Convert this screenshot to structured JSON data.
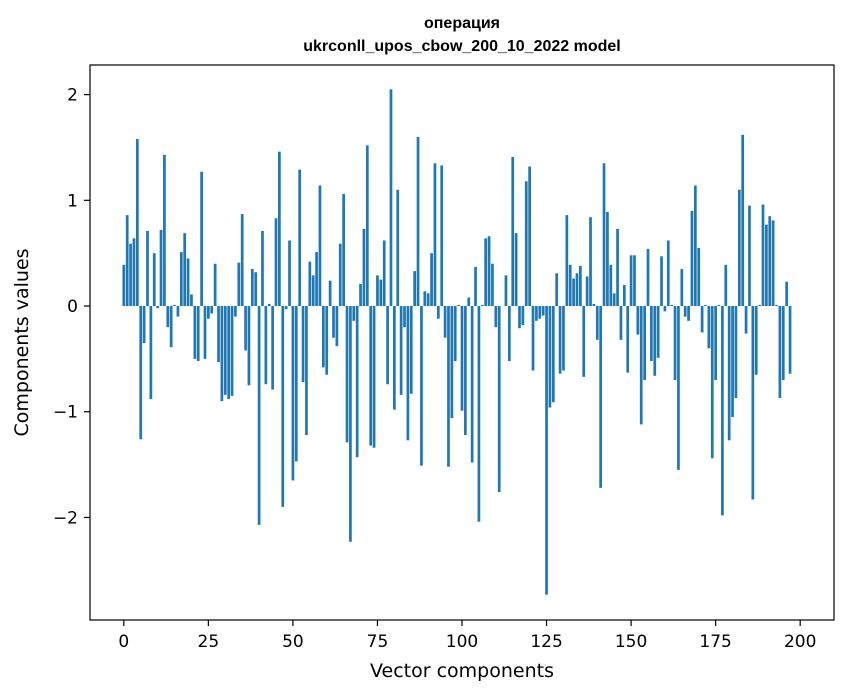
{
  "chart_data": {
    "type": "bar",
    "title_line1": "операция",
    "title_line2": "ukrconll_upos_cbow_200_10_2022 model",
    "xlabel": "Vector components",
    "ylabel": "Components values",
    "xlim": [
      -10,
      210
    ],
    "ylim": [
      -2.97,
      2.28
    ],
    "xticks": [
      0,
      25,
      50,
      75,
      100,
      125,
      150,
      175,
      200
    ],
    "yticks": [
      -2,
      -1,
      0,
      1,
      2
    ],
    "ytick_labels": [
      "−2",
      "−1",
      "0",
      "1",
      "2"
    ],
    "bar_color": "#1f77b4",
    "values": [
      0.39,
      0.86,
      0.59,
      0.64,
      1.58,
      -1.26,
      -0.35,
      0.71,
      -0.88,
      0.5,
      -0.02,
      0.72,
      1.43,
      -0.2,
      -0.39,
      0.01,
      -0.1,
      0.51,
      0.69,
      0.45,
      0.11,
      -0.5,
      -0.52,
      1.27,
      -0.5,
      -0.12,
      -0.07,
      0.4,
      -0.53,
      -0.9,
      -0.84,
      -0.88,
      -0.85,
      -0.1,
      0.41,
      0.87,
      -0.42,
      -0.75,
      0.35,
      0.32,
      -2.07,
      0.71,
      -0.74,
      0.02,
      -0.79,
      0.83,
      1.46,
      -1.9,
      -0.03,
      0.62,
      -1.65,
      -1.47,
      1.29,
      -0.72,
      -1.22,
      0.42,
      0.29,
      0.51,
      1.14,
      -0.58,
      -0.65,
      0.24,
      -0.3,
      -0.38,
      0.59,
      1.06,
      -1.29,
      -2.23,
      -0.14,
      -1.43,
      0.21,
      0.73,
      1.52,
      -1.32,
      -1.34,
      0.29,
      0.25,
      0.62,
      -0.74,
      2.05,
      -0.98,
      1.1,
      -0.84,
      -0.2,
      -1.27,
      -0.83,
      0.33,
      1.6,
      -1.51,
      0.14,
      0.12,
      0.5,
      1.35,
      -0.12,
      1.33,
      -0.3,
      -1.52,
      -1.06,
      -0.52,
      0.01,
      -0.99,
      -1.22,
      0.08,
      -1.48,
      0.37,
      -2.04,
      0.01,
      0.64,
      0.66,
      0.4,
      -0.2,
      -1.76,
      0.0,
      0.29,
      -0.52,
      1.41,
      0.69,
      -0.21,
      -0.18,
      1.18,
      1.32,
      -0.61,
      -0.14,
      -0.12,
      -0.09,
      -2.73,
      -0.96,
      -0.91,
      0.31,
      -0.64,
      -0.61,
      0.86,
      0.39,
      0.26,
      0.31,
      0.38,
      -0.67,
      0.28,
      0.84,
      0.02,
      -0.32,
      -1.72,
      1.35,
      0.89,
      0.39,
      0.12,
      0.73,
      -0.32,
      0.2,
      -0.63,
      0.48,
      0.48,
      -0.27,
      -1.12,
      -0.7,
      0.54,
      -0.52,
      -0.66,
      -0.49,
      0.47,
      -0.05,
      0.62,
      0.01,
      -0.7,
      -1.55,
      0.35,
      -0.1,
      -0.14,
      0.9,
      1.14,
      0.55,
      -0.25,
      0.01,
      -0.4,
      -1.44,
      -0.7,
      0.01,
      -1.98,
      0.39,
      -1.27,
      -1.05,
      -0.87,
      1.1,
      1.62,
      -0.26,
      0.95,
      -1.83,
      -0.65,
      0.01,
      0.96,
      0.77,
      0.85,
      0.81,
      0.01,
      -0.87,
      -0.7,
      0.23,
      -0.64
    ]
  }
}
